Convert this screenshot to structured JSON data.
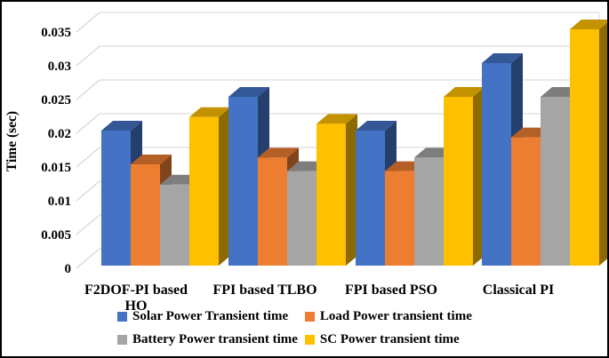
{
  "chart_data": {
    "type": "bar",
    "style": "3d-clustered-column",
    "title": "",
    "xlabel": "",
    "ylabel": "Time (sec)",
    "ylim": [
      0,
      0.035
    ],
    "grid": true,
    "legend_position": "bottom",
    "yticks": [
      "0",
      "0.005",
      "0.01",
      "0.015",
      "0.02",
      "0.025",
      "0.03",
      "0.035"
    ],
    "categories": [
      "F2DOF-PI based HO",
      "FPI based TLBO",
      "FPI based PSO",
      "Classical PI"
    ],
    "series": [
      {
        "name": "Solar Power Transient time",
        "color": "#4472C4",
        "values": [
          0.02,
          0.025,
          0.02,
          0.03
        ]
      },
      {
        "name": "Load Power transient time",
        "color": "#ED7D31",
        "values": [
          0.015,
          0.016,
          0.014,
          0.019
        ]
      },
      {
        "name": "Battery Power transient time",
        "color": "#A5A5A5",
        "values": [
          0.012,
          0.014,
          0.016,
          0.025
        ]
      },
      {
        "name": "SC Power transient time",
        "color": "#FFC000",
        "values": [
          0.022,
          0.021,
          0.025,
          0.035
        ]
      }
    ],
    "gridline_color": "#E3E3E3",
    "slant_color": "#D6D6D6"
  }
}
